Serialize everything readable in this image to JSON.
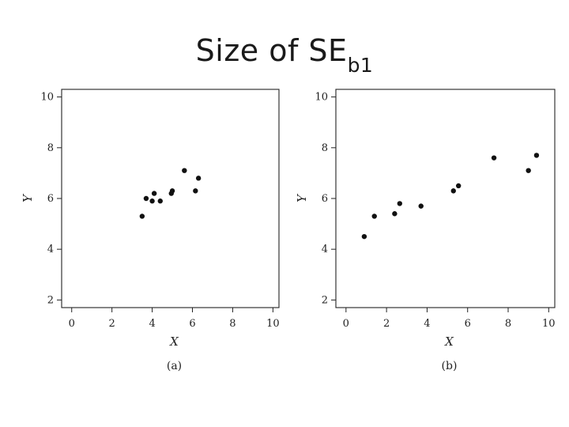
{
  "title": {
    "main": "Size of SE",
    "subscript": "b1"
  },
  "chart_data": [
    {
      "type": "scatter",
      "caption": "(a)",
      "xlabel": "X",
      "ylabel": "Y",
      "xlim": [
        -0.5,
        10.3
      ],
      "ylim": [
        1.7,
        10.3
      ],
      "xticks": [
        0,
        2,
        4,
        6,
        8,
        10
      ],
      "yticks": [
        2,
        4,
        6,
        8,
        10
      ],
      "grid": false,
      "color": "#111111",
      "points": [
        {
          "x": 3.5,
          "y": 5.3
        },
        {
          "x": 3.7,
          "y": 6.0
        },
        {
          "x": 4.0,
          "y": 5.9
        },
        {
          "x": 4.1,
          "y": 6.2
        },
        {
          "x": 4.4,
          "y": 5.9
        },
        {
          "x": 4.95,
          "y": 6.2
        },
        {
          "x": 5.0,
          "y": 6.3
        },
        {
          "x": 5.6,
          "y": 7.1
        },
        {
          "x": 6.15,
          "y": 6.3
        },
        {
          "x": 6.3,
          "y": 6.8
        }
      ]
    },
    {
      "type": "scatter",
      "caption": "(b)",
      "xlabel": "X",
      "ylabel": "Y",
      "xlim": [
        -0.5,
        10.3
      ],
      "ylim": [
        1.7,
        10.3
      ],
      "xticks": [
        0,
        2,
        4,
        6,
        8,
        10
      ],
      "yticks": [
        2,
        4,
        6,
        8,
        10
      ],
      "grid": false,
      "color": "#111111",
      "points": [
        {
          "x": 0.9,
          "y": 4.5
        },
        {
          "x": 1.4,
          "y": 5.3
        },
        {
          "x": 2.4,
          "y": 5.4
        },
        {
          "x": 2.65,
          "y": 5.8
        },
        {
          "x": 3.7,
          "y": 5.7
        },
        {
          "x": 5.3,
          "y": 6.3
        },
        {
          "x": 5.55,
          "y": 6.5
        },
        {
          "x": 7.3,
          "y": 7.6
        },
        {
          "x": 9.0,
          "y": 7.1
        },
        {
          "x": 9.4,
          "y": 7.7
        }
      ]
    }
  ]
}
